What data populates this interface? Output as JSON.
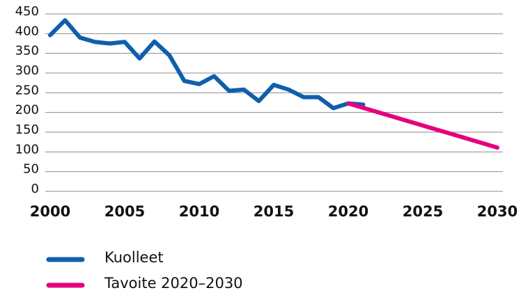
{
  "chart_data": {
    "type": "line",
    "series": [
      {
        "name": "Kuolleet",
        "color": "#0f5fad",
        "x": [
          2000,
          2001,
          2002,
          2003,
          2004,
          2005,
          2006,
          2007,
          2008,
          2009,
          2010,
          2011,
          2012,
          2013,
          2014,
          2015,
          2016,
          2017,
          2018,
          2019,
          2020,
          2021
        ],
        "values": [
          396,
          434,
          390,
          379,
          375,
          379,
          337,
          380,
          345,
          280,
          272,
          292,
          255,
          258,
          229,
          270,
          258,
          239,
          239,
          211,
          223,
          220
        ]
      },
      {
        "name": "Tavoite 2020–2030",
        "color": "#e5007e",
        "x": [
          2020,
          2030
        ],
        "values": [
          223,
          111
        ]
      }
    ],
    "xlim": [
      2000,
      2030
    ],
    "xticks": [
      2000,
      2005,
      2010,
      2015,
      2020,
      2025,
      2030
    ],
    "ylim": [
      0,
      450
    ],
    "yticks": [
      0,
      50,
      100,
      150,
      200,
      250,
      300,
      350,
      400,
      450
    ],
    "grid": true,
    "legend": "bottom"
  }
}
